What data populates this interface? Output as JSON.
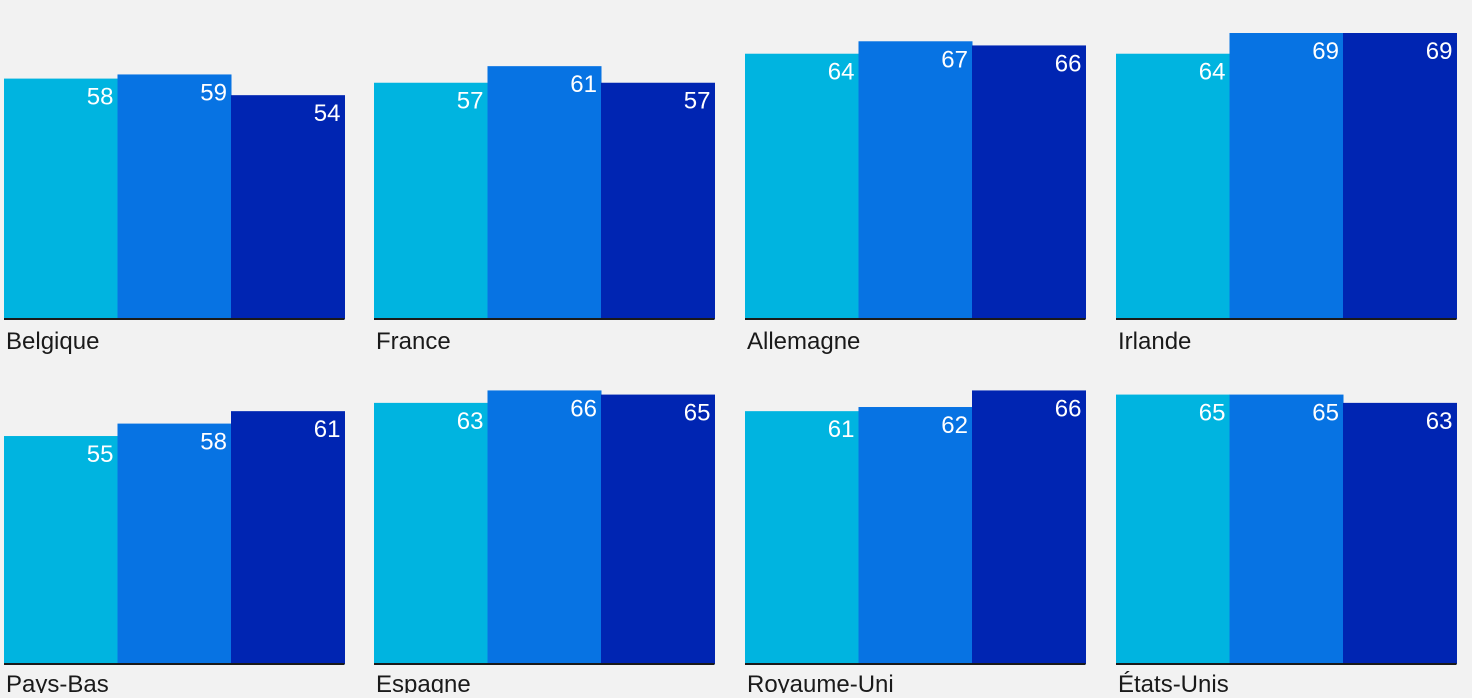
{
  "chart_data": {
    "type": "bar",
    "panels": [
      {
        "category": "Belgique",
        "values": [
          58,
          59,
          54
        ]
      },
      {
        "category": "France",
        "values": [
          57,
          61,
          57
        ]
      },
      {
        "category": "Allemagne",
        "values": [
          64,
          67,
          66
        ]
      },
      {
        "category": "Irlande",
        "values": [
          64,
          69,
          69
        ]
      },
      {
        "category": "Pays-Bas",
        "values": [
          55,
          58,
          61
        ]
      },
      {
        "category": "Espagne",
        "values": [
          63,
          66,
          65
        ]
      },
      {
        "category": "Royaume-Uni",
        "values": [
          61,
          62,
          66
        ]
      },
      {
        "category": "États-Unis",
        "values": [
          65,
          65,
          63
        ]
      }
    ],
    "ylim": [
      0,
      70
    ],
    "grid": false,
    "legend": "none",
    "series_colors": [
      "#00b4e0",
      "#0773e3",
      "#0025b2"
    ],
    "label_color": "#ffffff",
    "baseline_color": "#1a1a1a",
    "category_label_color": "#1a1a1a"
  }
}
